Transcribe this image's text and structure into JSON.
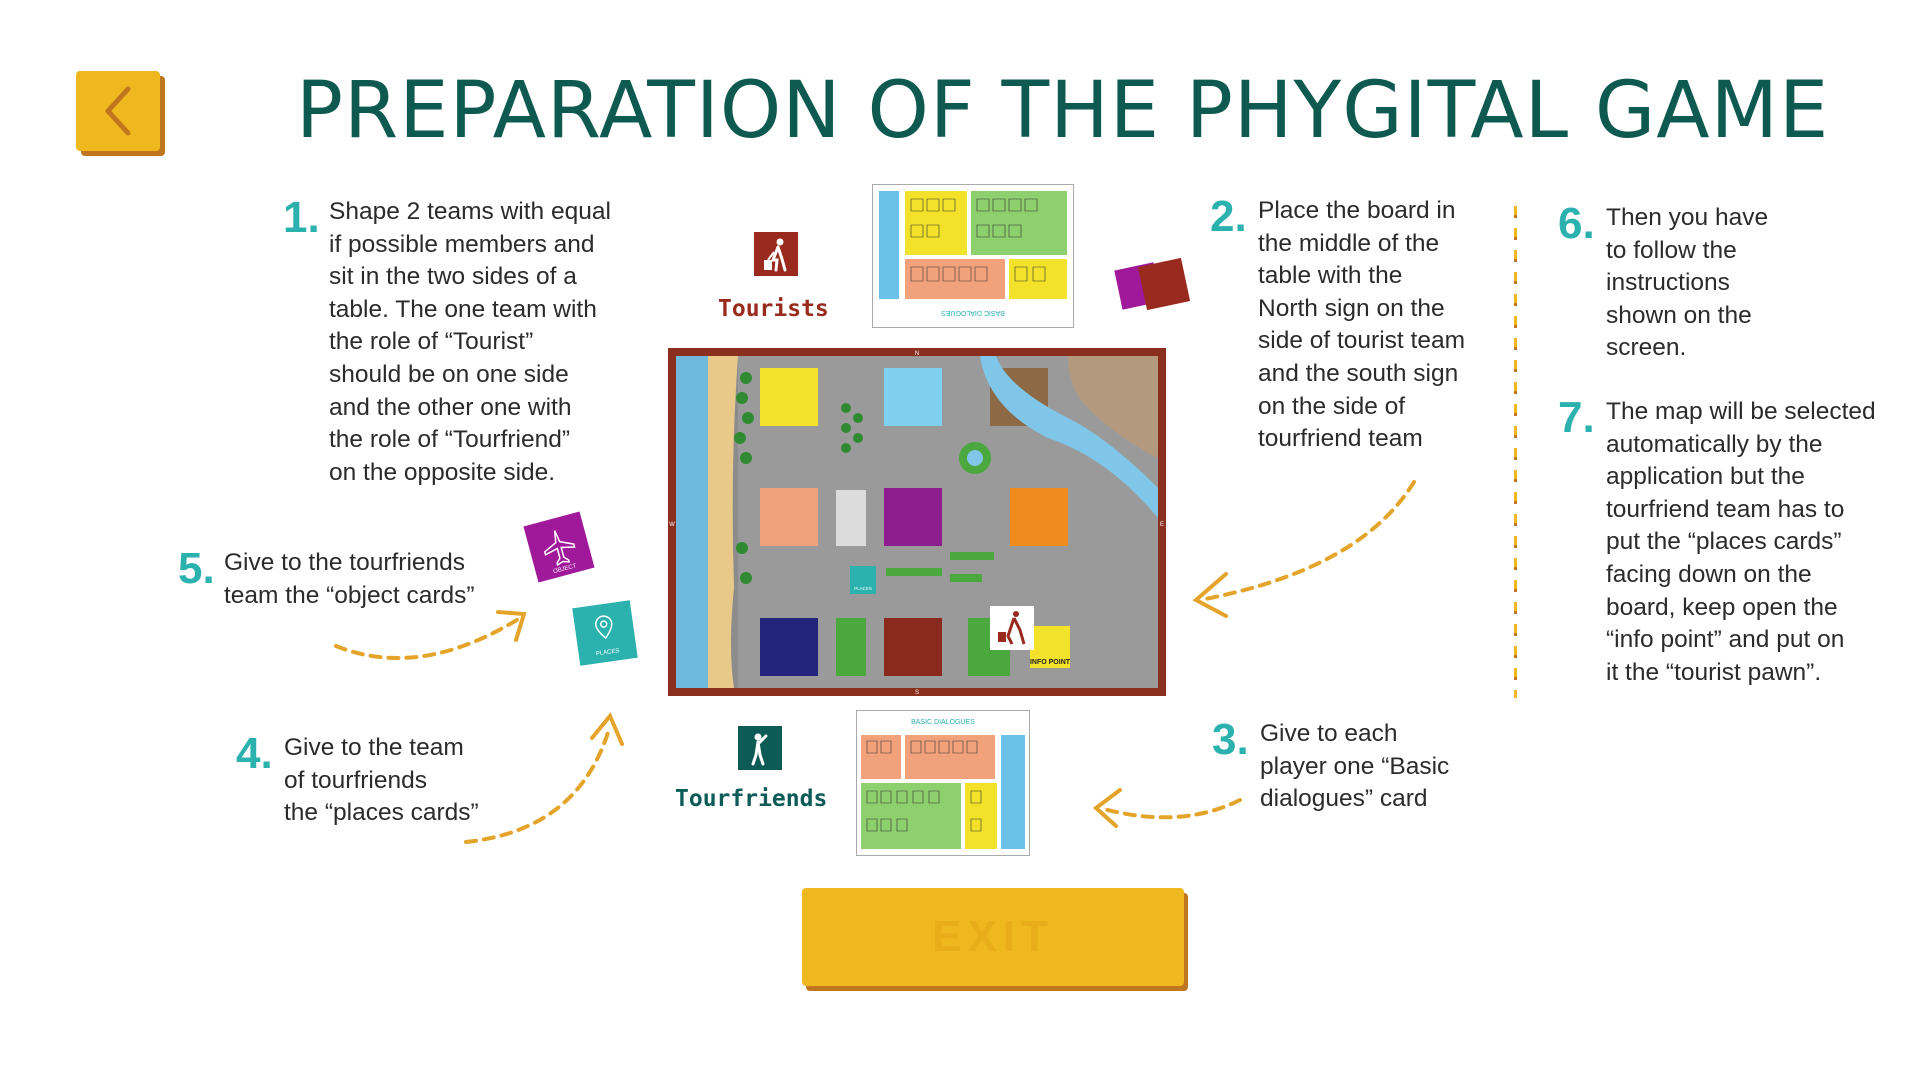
{
  "header": {
    "title": "PREPARATION OF THE PHYGITAL GAME",
    "back_icon": "chevron-left-icon"
  },
  "steps": [
    {
      "number": "1.",
      "lines": [
        "Shape 2 teams with equal",
        "if possible members and",
        "sit in the two sides of a",
        "table. The one team with",
        "the role of “Tourist”",
        "should be on one side",
        "and the other one with",
        "the role of  “Tourfriend”",
        "on the opposite side."
      ]
    },
    {
      "number": "2.",
      "lines": [
        "Place the board in",
        "the middle of the",
        "table with the",
        "North sign on the",
        "side of tourist team",
        "and the south sign",
        "on the side of",
        "tourfriend team"
      ]
    },
    {
      "number": "3.",
      "lines": [
        "Give to each",
        "player one “Basic",
        "dialogues” card"
      ]
    },
    {
      "number": "4.",
      "lines": [
        "Give to the team",
        "of tourfriends",
        "the “places cards”"
      ]
    },
    {
      "number": "5.",
      "lines": [
        "Give to the tourfriends",
        "team the “object cards”"
      ]
    },
    {
      "number": "6.",
      "lines": [
        "Then you have",
        "to follow the",
        "instructions",
        "shown on the",
        "screen."
      ]
    },
    {
      "number": "7.",
      "lines": [
        "The map will be selected",
        "automatically by the",
        "application but the",
        "tourfriend team has to",
        "put the “places cards”",
        "facing down on the",
        "board, keep open the",
        "“info point” and put on",
        "it the “tourist pawn”."
      ]
    }
  ],
  "teams": {
    "tourists_label": "Tourists",
    "tourfriends_label": "Tourfriends"
  },
  "cards": {
    "basic_dialogues_title": "BASIC DIALOGUES",
    "object_card_label": "OBJECT",
    "places_card_label": "PLACES"
  },
  "board": {
    "north": "N",
    "south": "S",
    "west": "W",
    "east": "E",
    "info_point": "INFO POINT",
    "places_tile": "PLACES"
  },
  "footer": {
    "exit_label": "EXIT"
  },
  "colors": {
    "accent_yellow": "#f0b81f",
    "accent_shadow": "#c0761e",
    "title_green": "#0e5a50",
    "step_teal": "#2bb1ae",
    "tourists_red": "#9a2a1e",
    "tourfriends_teal": "#0d5b57"
  }
}
